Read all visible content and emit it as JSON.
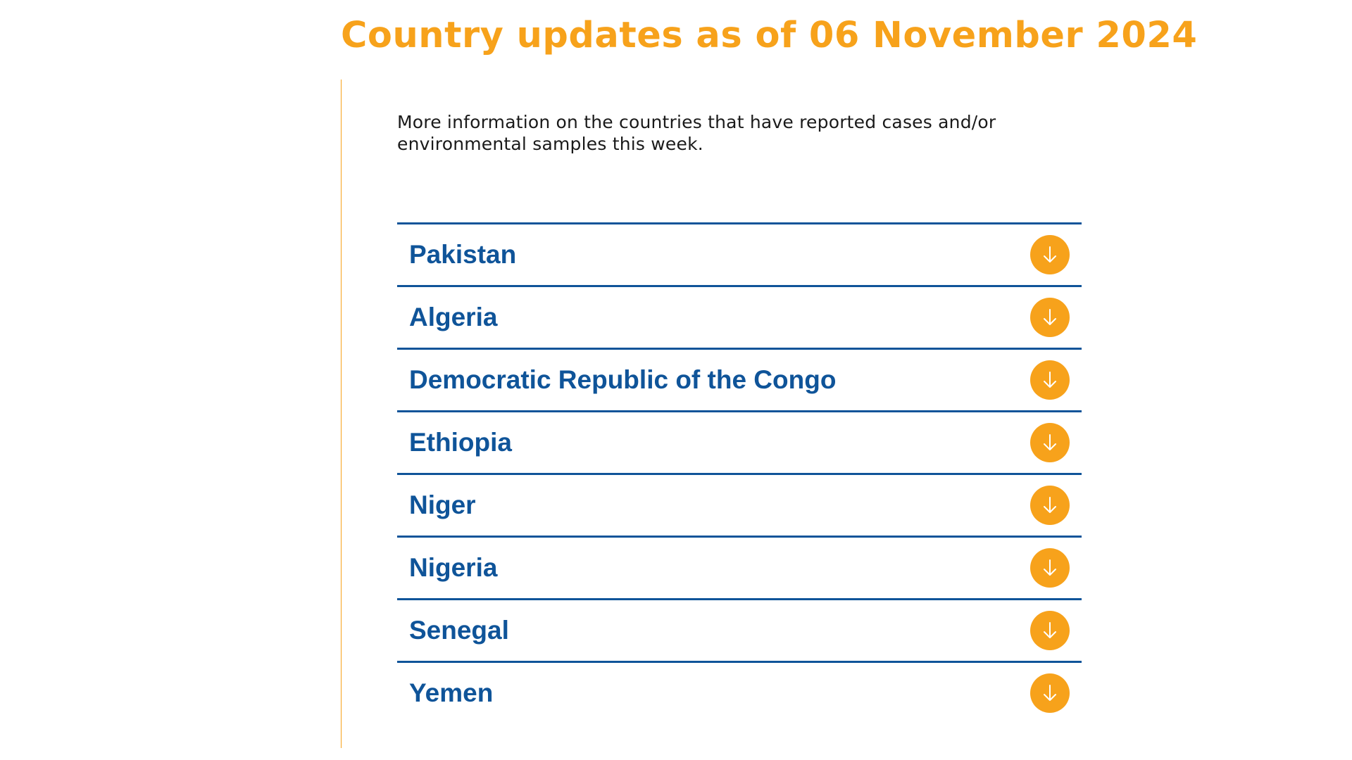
{
  "header": {
    "title": "Country updates as of 06 November 2024"
  },
  "intro": {
    "text": "More information on the countries that have reported cases and/or environmental samples this week."
  },
  "countries": [
    {
      "label": "Pakistan"
    },
    {
      "label": "Algeria"
    },
    {
      "label": "Democratic Republic of the Congo"
    },
    {
      "label": "Ethiopia"
    },
    {
      "label": "Niger"
    },
    {
      "label": "Nigeria"
    },
    {
      "label": "Senegal"
    },
    {
      "label": "Yemen"
    }
  ],
  "theme": {
    "accent": "#f7a21b",
    "primary": "#0f5499",
    "text": "#1a1a1a"
  },
  "icons": {
    "expand": "arrow-down-icon"
  }
}
